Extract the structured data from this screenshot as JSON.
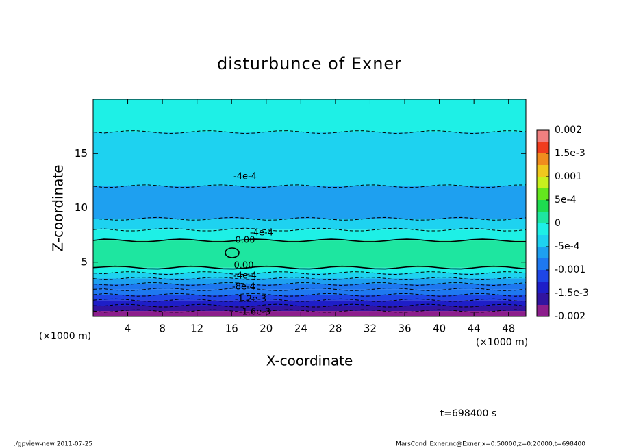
{
  "chart_data": {
    "type": "contour",
    "title": "disturbunce of Exner",
    "x_label": "X-coordinate",
    "y_label": "Z-coordinate",
    "x_unit": "(×1000 m)",
    "y_unit": "(×1000 m)",
    "xlim": [
      0,
      50
    ],
    "ylim": [
      0,
      20
    ],
    "xticks": [
      4,
      8,
      12,
      16,
      20,
      24,
      28,
      32,
      36,
      40,
      44,
      48
    ],
    "yticks": [
      5,
      10,
      15
    ],
    "field": {
      "z_edges": [
        0,
        0.5,
        1,
        1.5,
        2,
        2.5,
        3,
        3.5,
        4,
        4.5,
        7,
        8,
        9,
        12,
        17,
        20
      ],
      "values": [
        -0.0018,
        -0.0016,
        -0.0014,
        -0.0012,
        -0.001,
        -0.0008,
        -0.0006,
        -0.0004,
        -0.0002,
        0.00015,
        -0.0002,
        -0.0004,
        -0.0006,
        -0.0003,
        -0.0002
      ]
    },
    "contour_labels": [
      "-4e-4",
      "0.00",
      "0.00",
      "-4e-4",
      "-8e-4",
      "-1.2e-3",
      "-1.6e-3",
      "-4e-4"
    ],
    "colorbar": {
      "levels": [
        -0.002,
        -0.00175,
        -0.0015,
        -0.00125,
        -0.001,
        -0.00075,
        -0.0005,
        -0.00025,
        0,
        0.00025,
        0.0005,
        0.00075,
        0.001,
        0.00125,
        0.0015,
        0.00175,
        0.002
      ],
      "colors": [
        "#8c1e8c",
        "#3214a0",
        "#1e1ec8",
        "#1e46e6",
        "#1e78f0",
        "#1ea0f0",
        "#1ed2f0",
        "#1ef0e6",
        "#1ee6a0",
        "#1edc50",
        "#64e61e",
        "#c8f01e",
        "#f0c81e",
        "#f08c1e",
        "#f03c1e",
        "#f08080"
      ],
      "ticks": [
        0.002,
        {
          "value": 0.0015,
          "label": "1.5e-3"
        },
        0.001,
        {
          "value": 0.0005,
          "label": "5e-4"
        },
        0,
        {
          "value": -0.0005,
          "label": "-5e-4"
        },
        -0.001,
        {
          "value": -0.0015,
          "label": "-1.5e-3"
        },
        -0.002
      ]
    },
    "time_label": "t=698400 s",
    "footer_left": "./gpview-new  2011-07-25",
    "footer_right": "MarsCond_Exner.nc@Exner,x=0:50000,z=0:20000,t=698400"
  }
}
